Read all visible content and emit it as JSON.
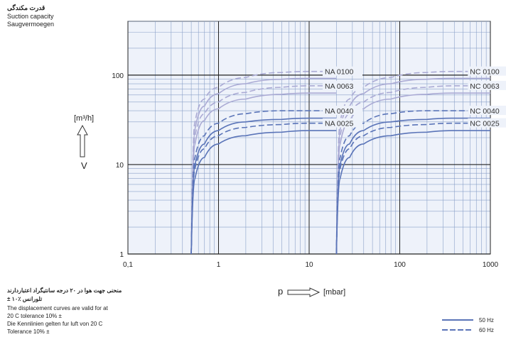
{
  "title": {
    "fa": "قدرت مکندگی",
    "en": "Suction capacity",
    "de": "Saugvermoegen"
  },
  "axis": {
    "y_unit": "[m³/h]",
    "y_symbol": "V",
    "x_symbol": "p",
    "x_unit": "[mbar]"
  },
  "notes": {
    "fa_line1": "منحنی جهت هوا در ۲۰ درجه سانتیگراد اعتباردارند",
    "fa_line2": "± ۱۰٪ تلورانس",
    "en_line1": "The displacement curves are valid for at",
    "en_line2": "20 C tolerance 10% ±",
    "de_line1": "Die Kennlinien gelten fur luft von 20 C",
    "de_line2": "Tolerance 10% ±"
  },
  "legend": {
    "hz50": "50 Hz",
    "hz60": "60 Hz"
  },
  "colors": {
    "grid_major": "#222222",
    "grid_minor": "#8aa0c8",
    "plot_bg": "#eef2fa",
    "series_light": "#aaaad4",
    "series_dark": "#5a74b8"
  },
  "chart_data": {
    "type": "line",
    "xscale": "log",
    "yscale": "log",
    "xlim": [
      0.1,
      1000
    ],
    "ylim": [
      1,
      400
    ],
    "x_ticks": [
      0.1,
      1,
      10,
      100,
      1000
    ],
    "x_tick_labels": [
      "0,1",
      "1",
      "10",
      "100",
      "1000"
    ],
    "y_ticks": [
      1,
      10,
      100
    ],
    "y_tick_labels": [
      "1",
      "10",
      "100"
    ],
    "grid": true,
    "legend_position": "bottom-right",
    "series": [
      {
        "name": "NA 0100",
        "pump_start_mbar": 0.5,
        "frequency": "60 Hz",
        "style": "dashed",
        "color": "light",
        "x": [
          0.5,
          0.55,
          0.7,
          1,
          2,
          5,
          10,
          20
        ],
        "y": [
          1,
          30,
          54,
          73,
          94,
          107,
          110,
          110
        ]
      },
      {
        "name": "NA 0100",
        "pump_start_mbar": 0.5,
        "frequency": "50 Hz",
        "style": "solid",
        "color": "light",
        "x": [
          0.5,
          0.55,
          0.7,
          1,
          2,
          5,
          10,
          20
        ],
        "y": [
          1,
          25,
          45,
          62,
          80,
          90,
          92,
          92
        ]
      },
      {
        "name": "NA 0063",
        "pump_start_mbar": 0.5,
        "frequency": "60 Hz",
        "style": "dashed",
        "color": "light",
        "x": [
          0.5,
          0.55,
          0.7,
          1,
          2,
          5,
          10,
          20
        ],
        "y": [
          1,
          21,
          37,
          50,
          64,
          73,
          76,
          76
        ]
      },
      {
        "name": "NA 0063",
        "pump_start_mbar": 0.5,
        "frequency": "50 Hz",
        "style": "solid",
        "color": "light",
        "x": [
          0.5,
          0.55,
          0.7,
          1,
          2,
          5,
          10,
          20
        ],
        "y": [
          1,
          17,
          31,
          42,
          54,
          61,
          63,
          63
        ]
      },
      {
        "name": "NA 0040",
        "pump_start_mbar": 0.5,
        "frequency": "60 Hz",
        "style": "dashed",
        "color": "dark",
        "x": [
          0.5,
          0.55,
          0.7,
          1,
          2,
          5,
          10,
          20
        ],
        "y": [
          1,
          12,
          21,
          29,
          37,
          40,
          40,
          40
        ]
      },
      {
        "name": "NA 0040",
        "pump_start_mbar": 0.5,
        "frequency": "50 Hz",
        "style": "solid",
        "color": "dark",
        "x": [
          0.5,
          0.55,
          0.7,
          1,
          2,
          5,
          10,
          20
        ],
        "y": [
          1,
          10,
          17,
          24,
          30,
          32,
          33,
          33
        ]
      },
      {
        "name": "NA 0025",
        "pump_start_mbar": 0.5,
        "frequency": "60 Hz",
        "style": "dashed",
        "color": "dark",
        "x": [
          0.5,
          0.55,
          0.7,
          1,
          2,
          5,
          10,
          20
        ],
        "y": [
          1,
          9,
          15,
          21,
          26,
          28,
          29,
          29
        ]
      },
      {
        "name": "NA 0025",
        "pump_start_mbar": 0.5,
        "frequency": "50 Hz",
        "style": "solid",
        "color": "dark",
        "x": [
          0.5,
          0.55,
          0.7,
          1,
          2,
          5,
          10,
          20
        ],
        "y": [
          1,
          7,
          12,
          17,
          21,
          23,
          24,
          24
        ]
      },
      {
        "name": "NC 0100",
        "pump_start_mbar": 20,
        "frequency": "60 Hz",
        "style": "dashed",
        "color": "light",
        "x": [
          20,
          22,
          28,
          40,
          80,
          200,
          400,
          1000
        ],
        "y": [
          1,
          30,
          54,
          73,
          94,
          107,
          110,
          110
        ]
      },
      {
        "name": "NC 0100",
        "pump_start_mbar": 20,
        "frequency": "50 Hz",
        "style": "solid",
        "color": "light",
        "x": [
          20,
          22,
          28,
          40,
          80,
          200,
          400,
          1000
        ],
        "y": [
          1,
          25,
          45,
          62,
          80,
          90,
          92,
          92
        ]
      },
      {
        "name": "NC 0063",
        "pump_start_mbar": 20,
        "frequency": "60 Hz",
        "style": "dashed",
        "color": "light",
        "x": [
          20,
          22,
          28,
          40,
          80,
          200,
          400,
          1000
        ],
        "y": [
          1,
          21,
          37,
          50,
          64,
          73,
          76,
          76
        ]
      },
      {
        "name": "NC 0063",
        "pump_start_mbar": 20,
        "frequency": "50 Hz",
        "style": "solid",
        "color": "light",
        "x": [
          20,
          22,
          28,
          40,
          80,
          200,
          400,
          1000
        ],
        "y": [
          1,
          17,
          31,
          42,
          54,
          61,
          63,
          63
        ]
      },
      {
        "name": "NC 0040",
        "pump_start_mbar": 20,
        "frequency": "60 Hz",
        "style": "dashed",
        "color": "dark",
        "x": [
          20,
          22,
          28,
          40,
          80,
          200,
          400,
          1000
        ],
        "y": [
          1,
          12,
          21,
          29,
          37,
          40,
          40,
          40
        ]
      },
      {
        "name": "NC 0040",
        "pump_start_mbar": 20,
        "frequency": "50 Hz",
        "style": "solid",
        "color": "dark",
        "x": [
          20,
          22,
          28,
          40,
          80,
          200,
          400,
          1000
        ],
        "y": [
          1,
          10,
          17,
          24,
          30,
          32,
          33,
          33
        ]
      },
      {
        "name": "NC 0025",
        "pump_start_mbar": 20,
        "frequency": "60 Hz",
        "style": "dashed",
        "color": "dark",
        "x": [
          20,
          22,
          28,
          40,
          80,
          200,
          400,
          1000
        ],
        "y": [
          1,
          9,
          15,
          21,
          26,
          28,
          29,
          29
        ]
      },
      {
        "name": "NC 0025",
        "pump_start_mbar": 20,
        "frequency": "50 Hz",
        "style": "solid",
        "color": "dark",
        "x": [
          20,
          22,
          28,
          40,
          80,
          200,
          400,
          1000
        ],
        "y": [
          1,
          7,
          12,
          17,
          21,
          23,
          24,
          24
        ]
      }
    ],
    "curve_labels": [
      "NA 0100",
      "NA 0063",
      "NA 0040",
      "NA 0025",
      "NC 0100",
      "NC 0063",
      "NC 0040",
      "NC 0025"
    ]
  }
}
